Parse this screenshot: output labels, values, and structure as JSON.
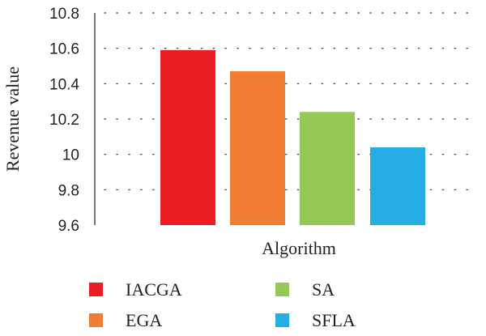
{
  "chart_data": {
    "type": "bar",
    "categories": [
      "IACGA",
      "EGA",
      "SA",
      "SFLA"
    ],
    "values": [
      10.59,
      10.47,
      10.24,
      10.04
    ],
    "colors": [
      "#ec1c24",
      "#f07f31",
      "#94c955",
      "#26ade4"
    ],
    "xlabel": "Algorithm",
    "ylabel": "Revenue value",
    "ylim": [
      9.6,
      10.8
    ],
    "yticks": [
      "9.6",
      "9.8",
      "10",
      "10.2",
      "10.4",
      "10.6",
      "10.8"
    ],
    "grid": true,
    "legend": {
      "position": "bottom",
      "columns": 2,
      "entries": [
        "IACGA",
        "SA",
        "EGA",
        "SFLA"
      ]
    }
  }
}
